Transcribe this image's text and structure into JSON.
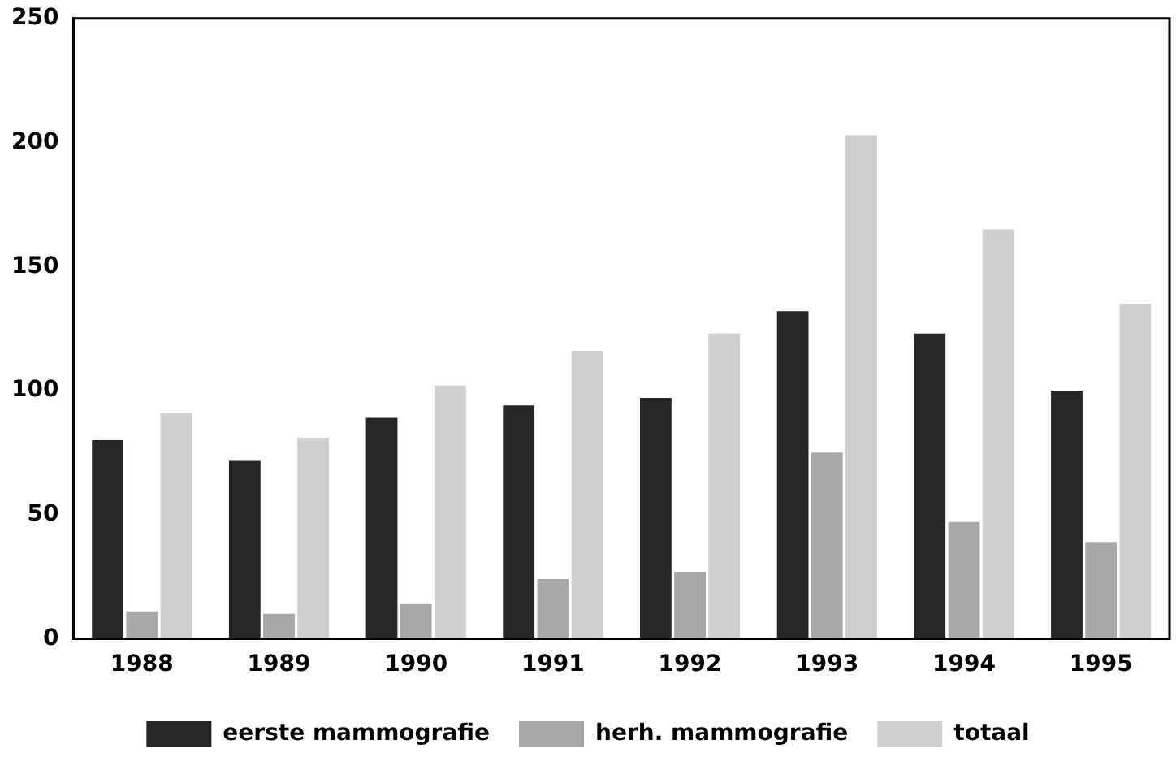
{
  "chart_data": {
    "type": "bar",
    "categories": [
      "1988",
      "1989",
      "1990",
      "1991",
      "1992",
      "1993",
      "1994",
      "1995"
    ],
    "series": [
      {
        "name": "eerste mammografie",
        "color": "#262626",
        "values": [
          80,
          72,
          89,
          94,
          97,
          132,
          123,
          100
        ]
      },
      {
        "name": "herh. mammografie",
        "color": "#a8a8a8",
        "values": [
          11,
          10,
          14,
          24,
          27,
          75,
          47,
          39
        ]
      },
      {
        "name": "totaal",
        "color": "#cfcfcf",
        "values": [
          91,
          81,
          102,
          116,
          123,
          203,
          165,
          135
        ]
      }
    ],
    "ylim": [
      0,
      250
    ],
    "yticks": [
      0,
      50,
      100,
      150,
      200,
      250
    ],
    "grid": false,
    "legend": "bottom"
  }
}
